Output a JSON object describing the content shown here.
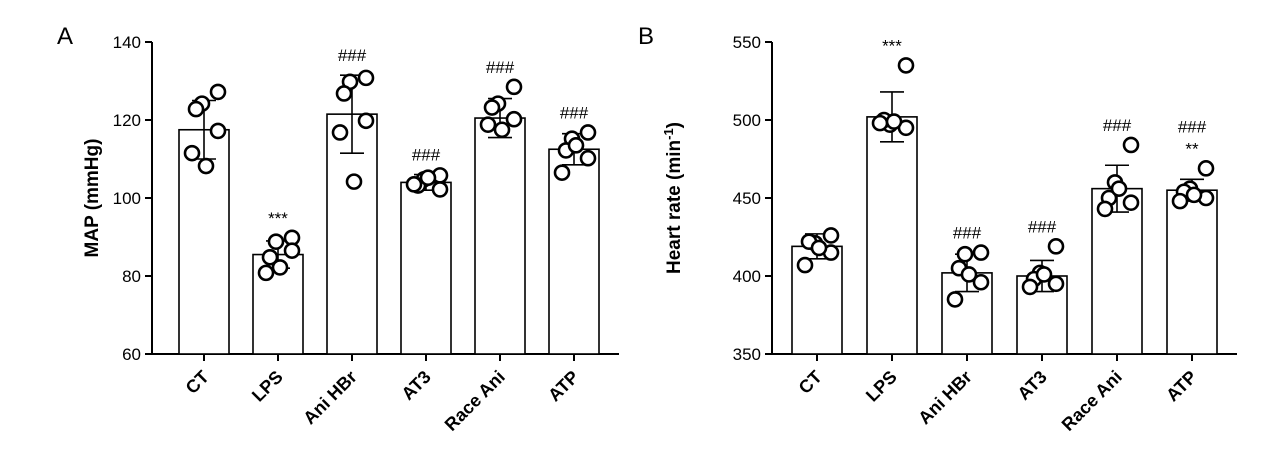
{
  "chart_data": [
    {
      "panel": "A",
      "type": "bar",
      "ylabel": "MAP (mmHg)",
      "ylim": [
        60,
        140
      ],
      "yticks": [
        60,
        80,
        100,
        120,
        140
      ],
      "categories": [
        "CT",
        "LPS",
        "Ani HBr",
        "AT3",
        "Race Ani",
        "ATP"
      ],
      "values": [
        117.5,
        85.5,
        121.5,
        104,
        120.5,
        112.5
      ],
      "errors": [
        7.5,
        3.5,
        10,
        2,
        5,
        4
      ],
      "points": [
        [
          127.2,
          124.2,
          122.8,
          117.2,
          111.5,
          108.2
        ],
        [
          89.8,
          88.8,
          84.8,
          86.5,
          80.8,
          82.2
        ],
        [
          130.8,
          129.8,
          126.8,
          119.8,
          116.8,
          104.2
        ],
        [
          105.8,
          104.8,
          103.2,
          102.2,
          103.5,
          105.2
        ],
        [
          128.5,
          124.2,
          123.2,
          120.2,
          118.8,
          117.5
        ],
        [
          116.8,
          115.2,
          112.2,
          110.2,
          106.5,
          113.5
        ]
      ],
      "annotations": [
        [],
        [
          "***"
        ],
        [
          "###"
        ],
        [
          "###"
        ],
        [
          "###"
        ],
        [
          "###"
        ]
      ]
    },
    {
      "panel": "B",
      "type": "bar",
      "ylabel_main": "Heart rate (min",
      "ylabel_sup": "-1",
      "ylabel_end": ")",
      "ylim": [
        350,
        550
      ],
      "yticks": [
        350,
        400,
        450,
        500,
        550
      ],
      "categories": [
        "CT",
        "LPS",
        "Ani HBr",
        "AT3",
        "Race Ani",
        "ATP"
      ],
      "values": [
        419,
        502,
        402,
        400,
        456,
        455
      ],
      "errors": [
        8,
        16,
        12,
        10,
        15,
        7
      ],
      "points": [
        [
          426,
          421,
          422,
          415,
          407,
          418
        ],
        [
          535,
          497,
          500,
          495,
          498,
          499
        ],
        [
          415,
          414,
          405,
          396,
          385,
          401
        ],
        [
          419,
          402,
          398,
          395,
          393,
          401
        ],
        [
          484,
          460,
          450,
          447,
          443,
          456
        ],
        [
          469,
          456,
          454,
          450,
          448,
          452
        ]
      ],
      "annotations": [
        [],
        [
          "***"
        ],
        [
          "###"
        ],
        [
          "###"
        ],
        [
          "###"
        ],
        [
          "###",
          "**"
        ]
      ]
    }
  ]
}
